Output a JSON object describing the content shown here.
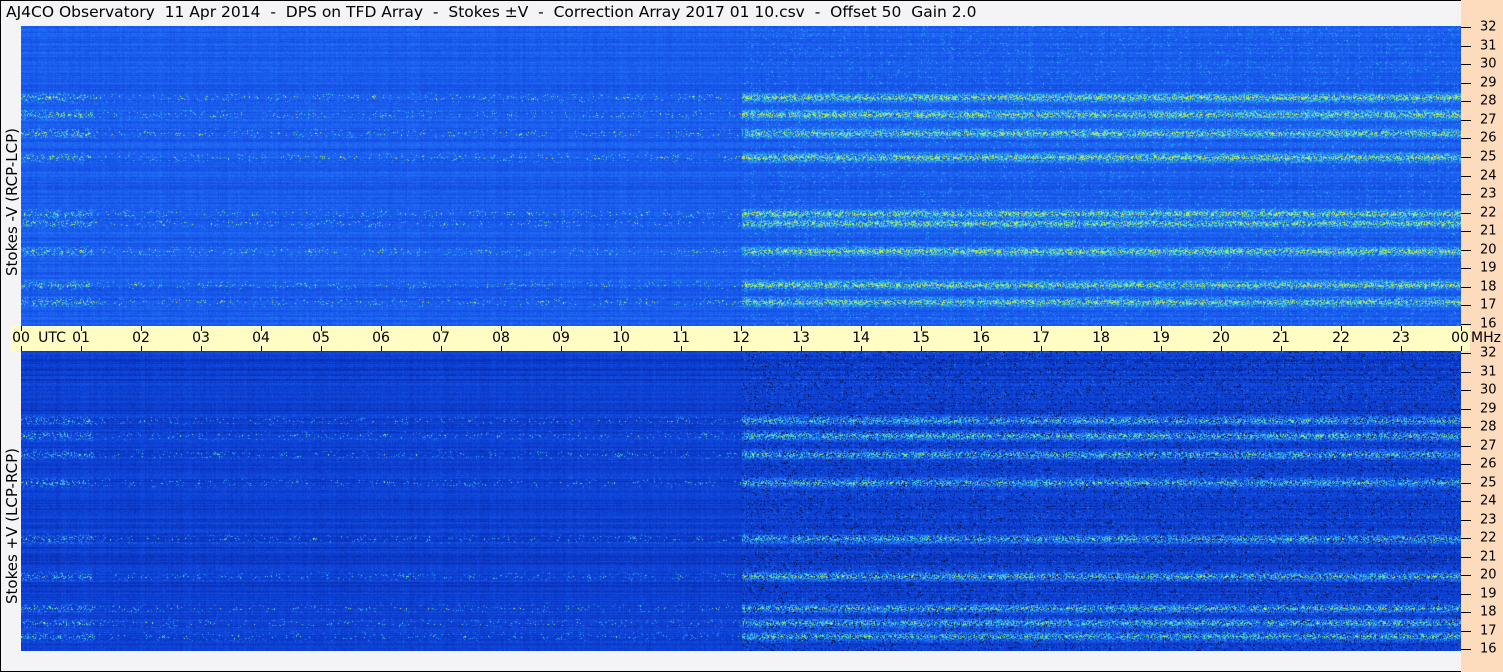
{
  "title": "AJ4CO Observatory  11 Apr 2014  -  DPS on TFD Array  -  Stokes ±V  -  Correction Array 2017 01 10.csv  -  Offset 50  Gain 2.0",
  "chart_data": [
    {
      "type": "heatmap",
      "ylabel": "Stokes -V (RCP-LCP)",
      "x_ticks": [
        "00",
        "01",
        "02",
        "03",
        "04",
        "05",
        "06",
        "07",
        "08",
        "09",
        "10",
        "11",
        "12",
        "13",
        "14",
        "15",
        "16",
        "17",
        "18",
        "19",
        "20",
        "21",
        "22",
        "23",
        "00"
      ],
      "y_ticks": [
        "16",
        "17",
        "18",
        "19",
        "20",
        "21",
        "22",
        "23",
        "24",
        "25",
        "26",
        "27",
        "28",
        "29",
        "30",
        "31",
        "32"
      ],
      "xlim": [
        0,
        24
      ],
      "ylim": [
        16,
        32
      ],
      "active_bands_mhz": [
        17.3,
        18.2,
        20.0,
        21.5,
        22.0,
        25.0,
        26.3,
        27.3,
        28.2
      ],
      "active_period_utc": [
        12,
        24
      ]
    },
    {
      "type": "heatmap",
      "ylabel": "Stokes +V (LCP-RCP)",
      "x_ticks": [
        "00",
        "01",
        "02",
        "03",
        "04",
        "05",
        "06",
        "07",
        "08",
        "09",
        "10",
        "11",
        "12",
        "13",
        "14",
        "15",
        "16",
        "17",
        "18",
        "19",
        "20",
        "21",
        "22",
        "23",
        "00"
      ],
      "y_ticks": [
        "16",
        "17",
        "18",
        "19",
        "20",
        "21",
        "22",
        "23",
        "24",
        "25",
        "26",
        "27",
        "28",
        "29",
        "30",
        "31",
        "32"
      ],
      "xlim": [
        0,
        24
      ],
      "ylim": [
        16,
        32
      ],
      "active_bands_mhz": [
        16.8,
        17.5,
        18.3,
        20.0,
        22.0,
        25.0,
        26.5,
        27.5,
        28.3
      ],
      "active_period_utc": [
        12,
        24
      ]
    }
  ],
  "axis": {
    "time_unit": "UTC",
    "freq_unit": "MHz"
  },
  "colors": {
    "colormap": [
      "#000000",
      "#0a1a7a",
      "#0a3acc",
      "#1a5cf0",
      "#2a8cf8",
      "#30d0f0",
      "#a0f060",
      "#f0f020",
      "#f06080",
      "#ffffff"
    ],
    "time_band": "#fffcc4",
    "freq_band": "#fddcbd"
  }
}
